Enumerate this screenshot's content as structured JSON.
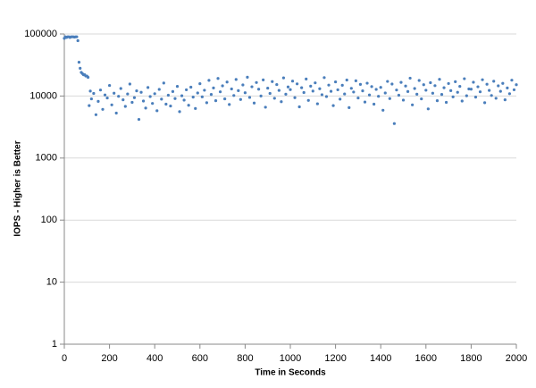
{
  "chart_data": {
    "type": "scatter",
    "x_label": "Time in Seconds",
    "y_label": "IOPS - Higher is Better",
    "yscale": "log",
    "grid": true,
    "color": "#4a7ebb",
    "xlim": [
      0,
      2000
    ],
    "xticks": [
      0,
      200,
      400,
      600,
      800,
      1000,
      1200,
      1400,
      1600,
      1800,
      2000
    ],
    "ylim": [
      1,
      100000
    ],
    "yticks": [
      1,
      10,
      100,
      1000,
      10000,
      100000
    ],
    "x": [
      0,
      5,
      10,
      15,
      20,
      25,
      30,
      35,
      40,
      45,
      50,
      55,
      60,
      65,
      70,
      75,
      80,
      85,
      90,
      95,
      100,
      105,
      110,
      115,
      120,
      130,
      140,
      150,
      160,
      170,
      180,
      190,
      200,
      210,
      220,
      230,
      240,
      250,
      260,
      270,
      280,
      290,
      300,
      310,
      320,
      330,
      340,
      350,
      360,
      370,
      380,
      390,
      400,
      410,
      420,
      430,
      440,
      450,
      460,
      470,
      480,
      490,
      500,
      510,
      520,
      530,
      540,
      550,
      560,
      570,
      580,
      590,
      600,
      610,
      620,
      630,
      640,
      650,
      660,
      670,
      680,
      690,
      700,
      710,
      720,
      730,
      740,
      750,
      760,
      770,
      780,
      790,
      800,
      810,
      820,
      830,
      840,
      850,
      860,
      870,
      880,
      890,
      900,
      910,
      920,
      930,
      940,
      950,
      960,
      970,
      980,
      990,
      1000,
      1010,
      1020,
      1030,
      1040,
      1050,
      1060,
      1070,
      1080,
      1090,
      1100,
      1110,
      1120,
      1130,
      1140,
      1150,
      1160,
      1170,
      1180,
      1190,
      1200,
      1210,
      1220,
      1230,
      1240,
      1250,
      1260,
      1270,
      1280,
      1290,
      1300,
      1310,
      1320,
      1330,
      1340,
      1350,
      1360,
      1370,
      1380,
      1390,
      1400,
      1410,
      1420,
      1430,
      1440,
      1450,
      1460,
      1470,
      1480,
      1490,
      1500,
      1510,
      1520,
      1530,
      1540,
      1550,
      1560,
      1570,
      1580,
      1590,
      1600,
      1610,
      1620,
      1630,
      1640,
      1650,
      1660,
      1670,
      1680,
      1690,
      1700,
      1710,
      1720,
      1730,
      1740,
      1750,
      1760,
      1770,
      1780,
      1790,
      1800,
      1810,
      1820,
      1830,
      1840,
      1850,
      1860,
      1870,
      1880,
      1890,
      1900,
      1910,
      1920,
      1930,
      1940,
      1950,
      1960,
      1970,
      1980,
      1990,
      2000
    ],
    "values": [
      85000,
      90000,
      88000,
      90000,
      90000,
      88000,
      90000,
      90000,
      90000,
      89000,
      90000,
      90000,
      78000,
      35000,
      28000,
      24000,
      23000,
      22000,
      22000,
      21000,
      21000,
      20000,
      7000,
      12000,
      9000,
      11000,
      5000,
      8200,
      12500,
      6100,
      10400,
      9300,
      14800,
      7200,
      11100,
      5300,
      9900,
      13200,
      8700,
      6800,
      10800,
      15600,
      7900,
      9400,
      12100,
      4200,
      11500,
      8300,
      6400,
      13700,
      9800,
      7600,
      10900,
      5800,
      12800,
      8900,
      16200,
      7400,
      10300,
      6900,
      11800,
      9100,
      14300,
      5600,
      10100,
      8600,
      12600,
      7100,
      13900,
      9600,
      6300,
      11200,
      15800,
      9700,
      12400,
      7800,
      17900,
      10600,
      13500,
      8400,
      19200,
      11700,
      14600,
      9000,
      16800,
      7300,
      13000,
      10200,
      18500,
      12200,
      8800,
      15100,
      11300,
      20100,
      9500,
      14100,
      7700,
      16500,
      12900,
      10000,
      18200,
      6600,
      13400,
      11000,
      17100,
      9200,
      15300,
      12300,
      8100,
      19600,
      10700,
      14000,
      12700,
      17400,
      9400,
      15700,
      6700,
      13600,
      11400,
      18800,
      8500,
      14400,
      12000,
      16300,
      7500,
      13100,
      10500,
      19800,
      9800,
      15000,
      11900,
      7000,
      16900,
      12600,
      8900,
      14900,
      10800,
      18100,
      6500,
      13300,
      11600,
      17600,
      9300,
      15400,
      12100,
      8000,
      16100,
      10400,
      14200,
      7400,
      12800,
      9900,
      13800,
      5900,
      11200,
      17200,
      9100,
      15600,
      3600,
      12500,
      10300,
      16600,
      8600,
      14500,
      11800,
      19400,
      7200,
      13200,
      10700,
      17800,
      9000,
      15200,
      12400,
      6200,
      16400,
      11100,
      14700,
      8400,
      18600,
      10600,
      13600,
      7900,
      15900,
      12200,
      9700,
      17000,
      11500,
      14300,
      8300,
      19000,
      10100,
      13000,
      12900,
      16700,
      9600,
      14100,
      11700,
      18300,
      7800,
      15500,
      12300,
      10200,
      17300,
      9200,
      14600,
      11900,
      16000,
      8700,
      13500,
      10900,
      18000,
      12600,
      15200
    ]
  }
}
